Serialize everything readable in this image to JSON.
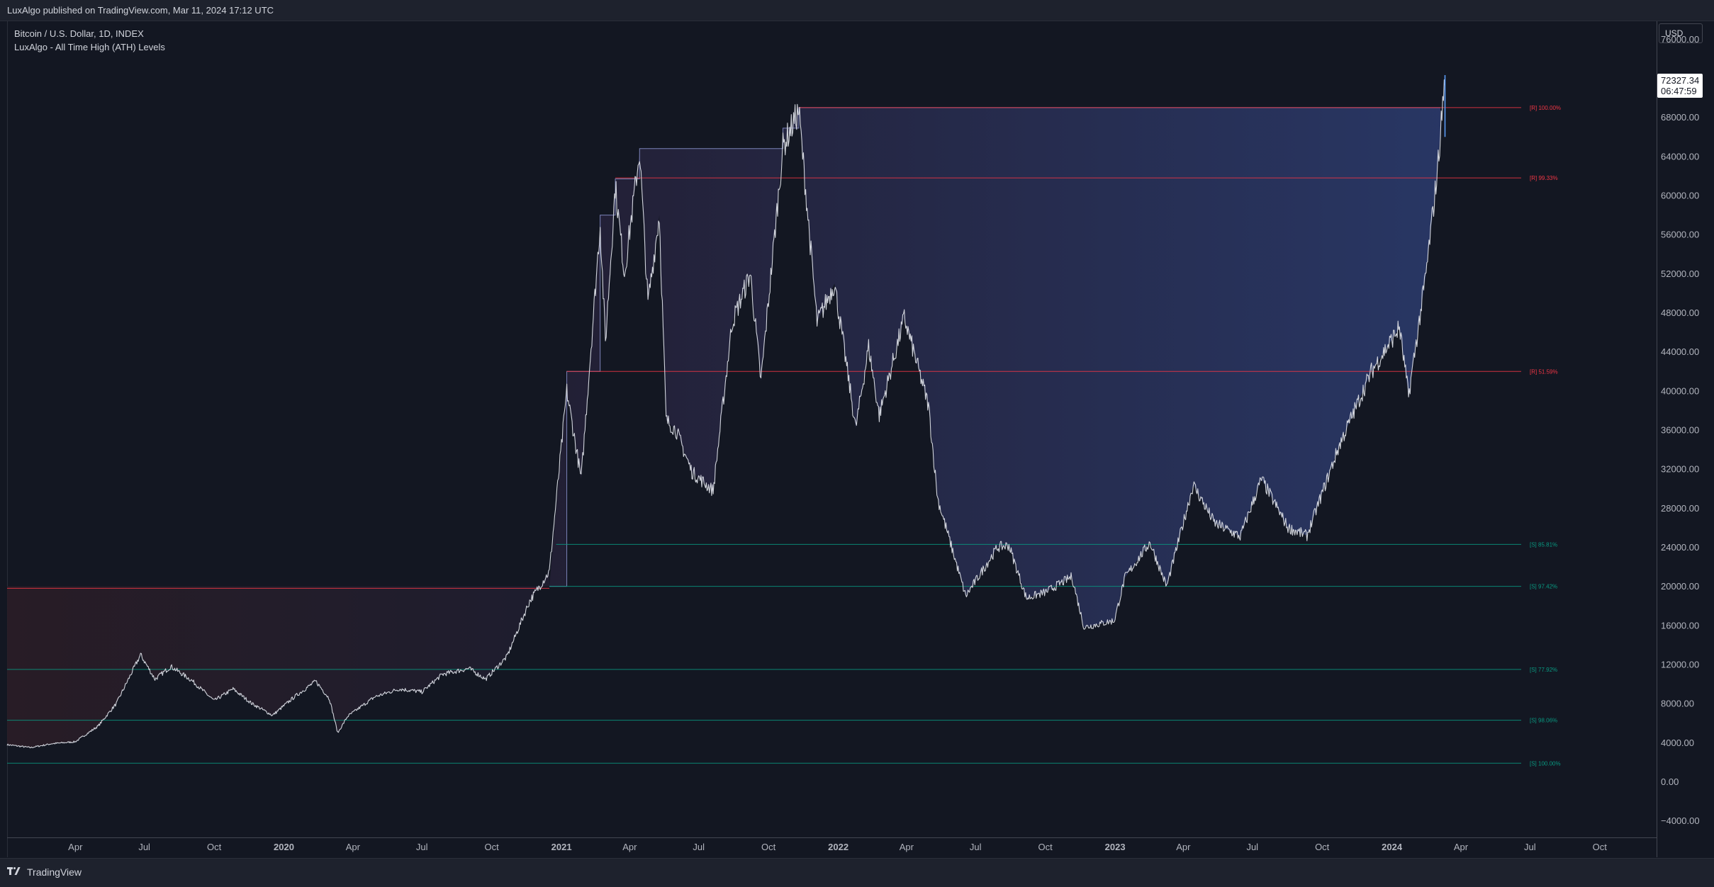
{
  "header": {
    "published": "LuxAlgo published on TradingView.com, Mar 11, 2024 17:12 UTC"
  },
  "legend": {
    "symbol": "Bitcoin / U.S. Dollar, 1D, INDEX",
    "indicator": "LuxAlgo - All Time High (ATH) Levels"
  },
  "price_scale": {
    "currency": "USD",
    "last_price": "72327.34",
    "countdown": "06:47:59"
  },
  "footer": {
    "brand": "TradingView"
  },
  "colors": {
    "background": "#131722",
    "candle": "#d1d4dc",
    "resistance": "#f23645",
    "support": "#089981",
    "ath_fill": "#2b3a6b",
    "ath_line": "#7b83b8"
  },
  "chart_data": {
    "type": "line",
    "title": "Bitcoin / U.S. Dollar, 1D, INDEX",
    "xlabel": "",
    "ylabel": "",
    "ylim": [
      -6000,
      80000
    ],
    "grid": false,
    "y_ticks": [
      76000,
      72000,
      68000,
      64000,
      60000,
      56000,
      52000,
      48000,
      44000,
      40000,
      36000,
      32000,
      28000,
      24000,
      20000,
      16000,
      12000,
      8000,
      4000,
      0,
      -4000
    ],
    "y_tick_labels": [
      "76000.00",
      "72000.00",
      "68000.00",
      "64000.00",
      "60000.00",
      "56000.00",
      "52000.00",
      "48000.00",
      "44000.00",
      "40000.00",
      "36000.00",
      "32000.00",
      "28000.00",
      "24000.00",
      "20000.00",
      "16000.00",
      "12000.00",
      "8000.00",
      "4000.00",
      "0.00",
      "−4000.00"
    ],
    "x_ticks": [
      {
        "label": "Apr",
        "date": "2019-04-01",
        "bold": false
      },
      {
        "label": "Jul",
        "date": "2019-07-01",
        "bold": false
      },
      {
        "label": "Oct",
        "date": "2019-10-01",
        "bold": false
      },
      {
        "label": "2020",
        "date": "2020-01-01",
        "bold": true
      },
      {
        "label": "Apr",
        "date": "2020-04-01",
        "bold": false
      },
      {
        "label": "Jul",
        "date": "2020-07-01",
        "bold": false
      },
      {
        "label": "Oct",
        "date": "2020-10-01",
        "bold": false
      },
      {
        "label": "2021",
        "date": "2021-01-01",
        "bold": true
      },
      {
        "label": "Apr",
        "date": "2021-04-01",
        "bold": false
      },
      {
        "label": "Jul",
        "date": "2021-07-01",
        "bold": false
      },
      {
        "label": "Oct",
        "date": "2021-10-01",
        "bold": false
      },
      {
        "label": "2022",
        "date": "2022-01-01",
        "bold": true
      },
      {
        "label": "Apr",
        "date": "2022-04-01",
        "bold": false
      },
      {
        "label": "Jul",
        "date": "2022-07-01",
        "bold": false
      },
      {
        "label": "Oct",
        "date": "2022-10-01",
        "bold": false
      },
      {
        "label": "2023",
        "date": "2023-01-01",
        "bold": true
      },
      {
        "label": "Apr",
        "date": "2023-04-01",
        "bold": false
      },
      {
        "label": "Jul",
        "date": "2023-07-01",
        "bold": false
      },
      {
        "label": "Oct",
        "date": "2023-10-01",
        "bold": false
      },
      {
        "label": "2024",
        "date": "2024-01-01",
        "bold": true
      },
      {
        "label": "Apr",
        "date": "2024-04-01",
        "bold": false
      },
      {
        "label": "Jul",
        "date": "2024-07-01",
        "bold": false
      },
      {
        "label": "Oct",
        "date": "2024-10-01",
        "bold": false
      }
    ],
    "series": [
      {
        "x": [
          "2019-01-01",
          "2019-02-01",
          "2019-03-01",
          "2019-04-01",
          "2019-05-01",
          "2019-05-25",
          "2019-06-26",
          "2019-07-15",
          "2019-08-05",
          "2019-09-01",
          "2019-10-01",
          "2019-10-26",
          "2019-11-20",
          "2019-12-17",
          "2020-01-15",
          "2020-02-12",
          "2020-03-01",
          "2020-03-12",
          "2020-03-25",
          "2020-04-30",
          "2020-06-01",
          "2020-07-01",
          "2020-07-28",
          "2020-09-01",
          "2020-09-23",
          "2020-10-21",
          "2020-11-20",
          "2020-12-16",
          "2021-01-08",
          "2021-01-27",
          "2021-02-21",
          "2021-02-28",
          "2021-03-13",
          "2021-03-25",
          "2021-04-14",
          "2021-04-25",
          "2021-05-10",
          "2021-05-19",
          "2021-06-01",
          "2021-06-22",
          "2021-07-20",
          "2021-08-14",
          "2021-09-07",
          "2021-09-21",
          "2021-10-20",
          "2021-11-10",
          "2021-12-04",
          "2021-12-27",
          "2022-01-24",
          "2022-02-10",
          "2022-02-24",
          "2022-03-29",
          "2022-04-30",
          "2022-05-12",
          "2022-06-18",
          "2022-07-30",
          "2022-08-14",
          "2022-09-06",
          "2022-10-01",
          "2022-11-05",
          "2022-11-21",
          "2022-12-31",
          "2023-01-14",
          "2023-02-16",
          "2023-03-10",
          "2023-04-14",
          "2023-05-12",
          "2023-06-15",
          "2023-07-13",
          "2023-08-17",
          "2023-09-11",
          "2023-10-24",
          "2023-12-05",
          "2024-01-11",
          "2024-01-23",
          "2024-02-15",
          "2024-03-01",
          "2024-03-11"
        ],
        "y": [
          3800,
          3500,
          3900,
          4100,
          5700,
          8000,
          13000,
          10500,
          11800,
          10400,
          8300,
          9500,
          8000,
          6800,
          8700,
          10300,
          8500,
          5000,
          6700,
          8700,
          9500,
          9200,
          11000,
          11600,
          10500,
          12800,
          18500,
          21500,
          40000,
          31000,
          57000,
          45000,
          61000,
          52000,
          64500,
          49000,
          58000,
          37000,
          36000,
          31700,
          29800,
          47000,
          52000,
          41000,
          65000,
          68700,
          47000,
          51000,
          36200,
          44500,
          37500,
          47500,
          38500,
          29000,
          19000,
          24000,
          24200,
          18800,
          19400,
          21000,
          15800,
          16500,
          20900,
          24500,
          20000,
          30400,
          26500,
          25100,
          31000,
          26000,
          25200,
          34500,
          42000,
          46500,
          39500,
          52000,
          62500,
          72327
        ]
      }
    ],
    "ath_steps": {
      "x": [
        "2019-01-01",
        "2020-12-16",
        "2021-01-08",
        "2021-02-21",
        "2021-03-13",
        "2021-04-14",
        "2021-10-20",
        "2021-11-10",
        "2024-03-05"
      ],
      "y": [
        20000,
        20000,
        42000,
        58000,
        61700,
        64800,
        66900,
        69000,
        69000
      ]
    },
    "levels": [
      {
        "label": "[R] 100.00%",
        "price": 69000,
        "start": "2021-11-10",
        "kind": "resistance"
      },
      {
        "label": "[R] 99.33%",
        "price": 61800,
        "start": "2021-03-13",
        "kind": "resistance"
      },
      {
        "label": "[R] 51.59%",
        "price": 42000,
        "start": "2021-01-08",
        "kind": "resistance"
      },
      {
        "label": "",
        "price": 19800,
        "start": "2019-01-01",
        "end": "2020-12-16",
        "kind": "resistance"
      },
      {
        "label": "[S] 85.81%",
        "price": 24300,
        "start": "2020-12-25",
        "kind": "support"
      },
      {
        "label": "[S] 97.42%",
        "price": 20000,
        "start": "2020-12-16",
        "kind": "support"
      },
      {
        "label": "[S] 77.92%",
        "price": 11500,
        "start": "2019-01-01",
        "kind": "support"
      },
      {
        "label": "[S] 98.06%",
        "price": 6300,
        "start": "2019-01-01",
        "kind": "support"
      },
      {
        "label": "[S] 100.00%",
        "price": 1900,
        "start": "2019-01-01",
        "kind": "support"
      }
    ]
  }
}
